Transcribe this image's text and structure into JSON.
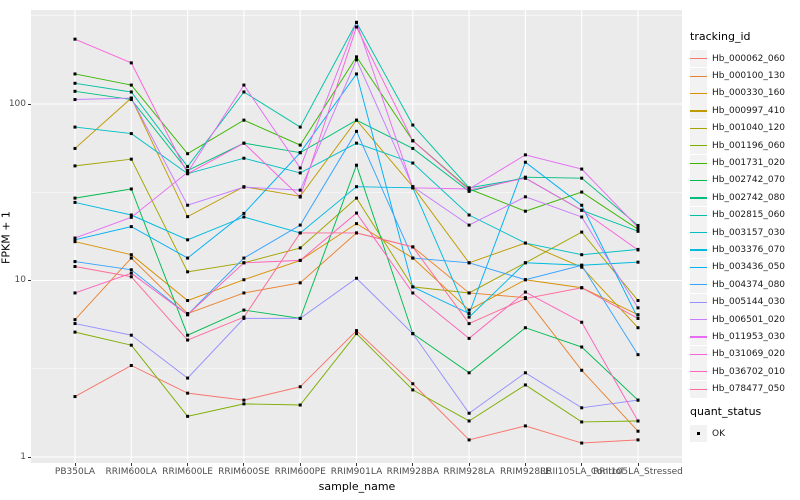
{
  "chart_data": {
    "type": "line",
    "title": "",
    "xlabel": "sample_name",
    "ylabel": "FPKM + 1",
    "y_scale": "log10",
    "ylim": [
      0.925,
      339
    ],
    "y_ticks": [
      1,
      10,
      100
    ],
    "y_minor_ticks": [
      3.162,
      31.62,
      316.2
    ],
    "grid": true,
    "legend_position": "right",
    "panel_bg": "#EBEBEB",
    "grid_color": "#FFFFFF",
    "point_color": "#000000",
    "tick_text_color": "#4D4D4D",
    "x_categories": [
      "PB350LA",
      "RRIM600LA",
      "RRIM600LE",
      "RRIM600SE",
      "RRIM600PE",
      "RRIM901LA",
      "RRIM928BA",
      "RRIM928LA",
      "RRIM928LE",
      "RRII105LA_Control",
      "RRII105LA_Stressed"
    ],
    "series_legend_title": "tracking_id",
    "status_legend_title": "quant_status",
    "status_legend_item": "OK",
    "series": [
      {
        "name": "Hb_000062_060",
        "color": "#F8766D",
        "values": [
          2.2,
          3.3,
          2.3,
          2.1,
          2.5,
          5.2,
          2.6,
          1.25,
          1.5,
          1.2,
          1.25
        ]
      },
      {
        "name": "Hb_000100_130",
        "color": "#EA8331",
        "values": [
          6.0,
          13.4,
          6.5,
          8.5,
          9.7,
          18.6,
          15.5,
          8.5,
          8.0,
          3.1,
          1.4
        ]
      },
      {
        "name": "Hb_000330_160",
        "color": "#D89000",
        "values": [
          16.6,
          14.0,
          7.7,
          10.1,
          13.0,
          21.0,
          13.4,
          6.8,
          10.1,
          9.1,
          6.4
        ]
      },
      {
        "name": "Hb_000997_410",
        "color": "#C09B00",
        "values": [
          56,
          108,
          23,
          34,
          30,
          81,
          34,
          12.6,
          16.3,
          11.9,
          5.4
        ]
      },
      {
        "name": "Hb_001040_120",
        "color": "#A3A500",
        "values": [
          44.6,
          48.7,
          11.2,
          12.6,
          15.3,
          29.3,
          9.2,
          8.5,
          12.6,
          18.8,
          7.7
        ]
      },
      {
        "name": "Hb_001196_060",
        "color": "#7CAE00",
        "values": [
          5.1,
          4.3,
          1.7,
          2.0,
          1.97,
          5.0,
          2.4,
          1.6,
          2.56,
          1.58,
          1.6
        ]
      },
      {
        "name": "Hb_001731_020",
        "color": "#39B600",
        "values": [
          148,
          128,
          52.3,
          81,
          58.5,
          185,
          62,
          33,
          24.7,
          31.7,
          19.5
        ]
      },
      {
        "name": "Hb_002742_070",
        "color": "#00BB4E",
        "values": [
          29.3,
          33,
          4.9,
          6.8,
          6.1,
          45,
          5.0,
          3.0,
          5.4,
          4.2,
          2.1
        ]
      },
      {
        "name": "Hb_002742_080",
        "color": "#00BF7D",
        "values": [
          118,
          106,
          42,
          60,
          53,
          81,
          56,
          32,
          38.5,
          38,
          20.5
        ]
      },
      {
        "name": "Hb_002815_060",
        "color": "#00C1A3",
        "values": [
          131,
          117,
          44.2,
          117,
          74,
          290,
          76,
          33.5,
          38,
          25,
          19
        ]
      },
      {
        "name": "Hb_003157_030",
        "color": "#00BFC4",
        "values": [
          74,
          68,
          40.3,
          49.3,
          40.7,
          60,
          46.3,
          23.5,
          16.3,
          14,
          15
        ]
      },
      {
        "name": "Hb_003376_070",
        "color": "#00BAE0",
        "values": [
          27.7,
          23.5,
          17,
          22.9,
          18.6,
          34,
          33.5,
          6.2,
          12.6,
          12.2,
          12.7
        ]
      },
      {
        "name": "Hb_003436_050",
        "color": "#00B0F6",
        "values": [
          17,
          20.2,
          13.4,
          24,
          53,
          148,
          9.2,
          6.5,
          46.8,
          26.7,
          6.1
        ]
      },
      {
        "name": "Hb_004374_080",
        "color": "#35A2FF",
        "values": [
          12.8,
          11.5,
          6.4,
          13.4,
          20.6,
          70,
          13.4,
          12.6,
          10.1,
          12.2,
          3.8
        ]
      },
      {
        "name": "Hb_005144_030",
        "color": "#9590FF",
        "values": [
          5.7,
          4.9,
          2.8,
          6.1,
          6.1,
          10.3,
          5.0,
          1.77,
          3.0,
          1.9,
          2.1
        ]
      },
      {
        "name": "Hb_006501_020",
        "color": "#C77CFF",
        "values": [
          106,
          108,
          26.7,
          33.8,
          32.5,
          178,
          34,
          20.6,
          29.8,
          22.9,
          7.0
        ]
      },
      {
        "name": "Hb_011953_030",
        "color": "#E76BF3",
        "values": [
          17.4,
          22.8,
          41,
          128,
          43.4,
          290,
          33.5,
          33,
          51.5,
          42.8,
          20
        ]
      },
      {
        "name": "Hb_031069_020",
        "color": "#FA62DB",
        "values": [
          233,
          171,
          40.3,
          60,
          29.7,
          273,
          61.8,
          32.6,
          38,
          25,
          14.9
        ]
      },
      {
        "name": "Hb_036702_010",
        "color": "#FF62BC",
        "values": [
          8.5,
          11.0,
          6.4,
          12.6,
          13.0,
          24.1,
          8.5,
          4.7,
          8.6,
          5.8,
          1.6
        ]
      },
      {
        "name": "Hb_078477_050",
        "color": "#FF6A98",
        "values": [
          12.0,
          10.5,
          4.6,
          6.2,
          18.6,
          18.6,
          15.5,
          5.7,
          7.9,
          9.1,
          6.1
        ]
      }
    ]
  }
}
